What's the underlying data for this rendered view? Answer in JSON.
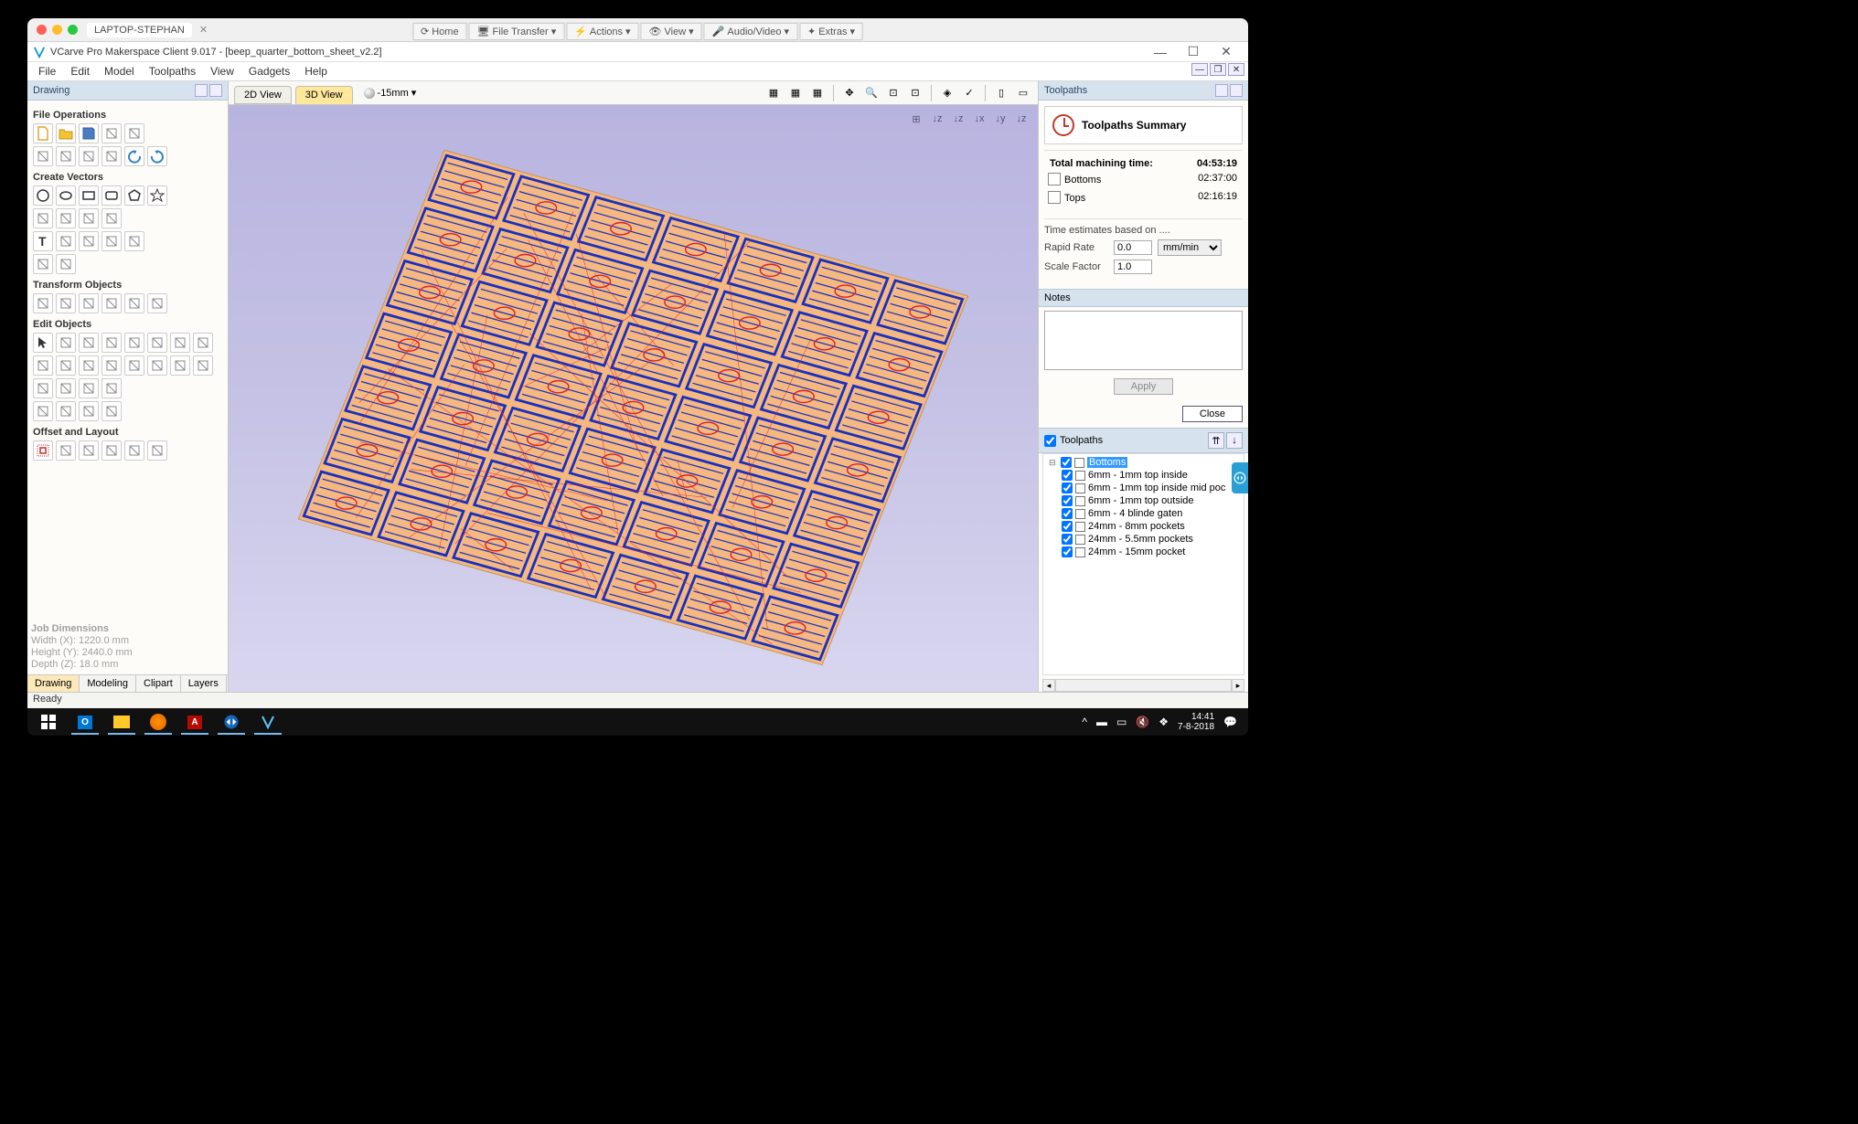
{
  "remote": {
    "tab_title": "LAPTOP-STEPHAN",
    "toolbar": [
      {
        "icon": "⟳",
        "label": "Home"
      },
      {
        "icon": "🖥",
        "label": "File Transfer",
        "caret": true
      },
      {
        "icon": "⚡",
        "label": "Actions",
        "caret": true
      },
      {
        "icon": "👁",
        "label": "View",
        "caret": true
      },
      {
        "icon": "🎤",
        "label": "Audio/Video",
        "caret": true
      },
      {
        "icon": "✦",
        "label": "Extras",
        "caret": true
      }
    ]
  },
  "app": {
    "title": "VCarve Pro Makerspace Client 9.017 - [beep_quarter_bottom_sheet_v2.2]",
    "menus": [
      "File",
      "Edit",
      "Model",
      "Toolpaths",
      "View",
      "Gadgets",
      "Help"
    ]
  },
  "left": {
    "header": "Drawing",
    "sections": [
      {
        "title": "File Operations",
        "rows": [
          [
            "new-file",
            "open-file",
            "save-file",
            "increment",
            "import"
          ],
          [
            "export",
            "cut",
            "copy",
            "paste",
            "undo",
            "redo"
          ]
        ]
      },
      {
        "title": "Create Vectors",
        "rows": [
          [
            "circle",
            "ellipse",
            "rect",
            "rounded-rect",
            "polygon",
            "star"
          ],
          [
            "polyline",
            "arc",
            "curve",
            "spiral"
          ],
          [
            "text",
            "text-on-curve",
            "trace",
            "dimension",
            "measure"
          ],
          [
            "bezier",
            "box-select"
          ]
        ]
      },
      {
        "title": "Transform Objects",
        "rows": [
          [
            "move",
            "set-size",
            "rotate",
            "mirror",
            "distort",
            "align"
          ]
        ]
      },
      {
        "title": "Edit Objects",
        "rows": [
          [
            "select",
            "node-edit",
            "group",
            "ungroup",
            "lock",
            "measure2",
            "extend",
            "scissors"
          ],
          [
            "join",
            "join-close",
            "join-curves",
            "close-curve",
            "fillet",
            "extend2",
            "offset-ext",
            "trim"
          ],
          [
            "chevron-left",
            "v-carve",
            "curve-fit",
            "offset-shape"
          ],
          [
            "weld",
            "arrow-r",
            "arrow-r2",
            "arrow-r3"
          ]
        ]
      },
      {
        "title": "Offset and Layout",
        "rows": [
          [
            "offset",
            "array-copy",
            "circular",
            "nest",
            "plate",
            "nest2"
          ]
        ]
      }
    ],
    "job_dims_title": "Job Dimensions",
    "job_width": "Width  (X): 1220.0 mm",
    "job_height": "Height (Y): 2440.0 mm",
    "job_depth": "Depth  (Z): 18.0 mm",
    "bottom_tabs": [
      "Drawing",
      "Modeling",
      "Clipart",
      "Layers"
    ]
  },
  "view": {
    "tabs": [
      "2D View",
      "3D View"
    ],
    "active_tab": 1,
    "depth_label": "-15mm",
    "viewport_icons": [
      "⊞",
      "↓z",
      "↓z",
      "↓x",
      "↓y",
      "↓z"
    ]
  },
  "right": {
    "header": "Toolpaths",
    "summary_title": "Toolpaths Summary",
    "total_label": "Total machining time:",
    "total_time": "04:53:19",
    "groups": [
      {
        "name": "Bottoms",
        "time": "02:37:00"
      },
      {
        "name": "Tops",
        "time": "02:16:19"
      }
    ],
    "estimate_note": "Time estimates based on ....",
    "rapid_label": "Rapid Rate",
    "rapid_value": "0.0",
    "rapid_unit": "mm/min",
    "scale_label": "Scale Factor",
    "scale_value": "1.0",
    "notes_label": "Notes",
    "apply_label": "Apply",
    "close_label": "Close",
    "tree_header": "Toolpaths",
    "selected": "Bottoms",
    "tree": [
      {
        "label": "Bottoms",
        "depth": 0,
        "selected": true,
        "expanded": true
      },
      {
        "label": "6mm - 1mm top inside",
        "depth": 1
      },
      {
        "label": "6mm - 1mm top inside mid poc",
        "depth": 1
      },
      {
        "label": "6mm - 1mm top outside",
        "depth": 1
      },
      {
        "label": "6mm - 4 blinde gaten",
        "depth": 1
      },
      {
        "label": "24mm - 8mm pockets",
        "depth": 1
      },
      {
        "label": "24mm - 5.5mm pockets",
        "depth": 1
      },
      {
        "label": "24mm - 15mm pocket",
        "depth": 1
      }
    ]
  },
  "status": "Ready",
  "taskbar": {
    "time": "14:41",
    "date": "7-8-2018"
  },
  "colors": {
    "material": "#f4b880",
    "toolpath_blue": "#1830c0",
    "toolpath_red": "#e02020",
    "toolpath_cyan": "#30d0d0"
  }
}
